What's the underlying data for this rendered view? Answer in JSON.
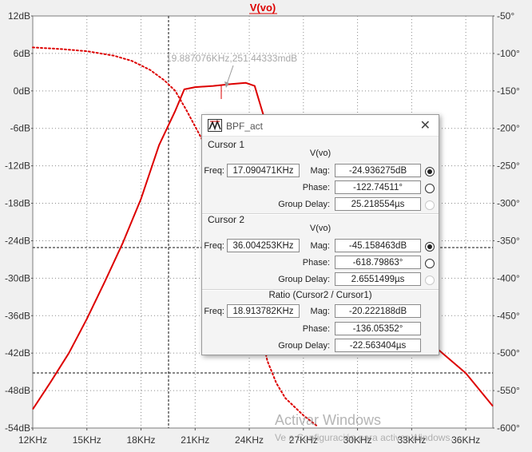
{
  "chart_data": {
    "type": "line",
    "title": "V(vo)",
    "x_ticks": [
      "12KHz",
      "15KHz",
      "18KHz",
      "21KHz",
      "24KHz",
      "27KHz",
      "30KHz",
      "33KHz",
      "36KHz"
    ],
    "y_left_ticks": [
      "12dB",
      "6dB",
      "0dB",
      "-6dB",
      "-12dB",
      "-18dB",
      "-24dB",
      "-30dB",
      "-36dB",
      "-42dB",
      "-48dB",
      "-54dB"
    ],
    "y_right_ticks": [
      "-50°",
      "-100°",
      "-150°",
      "-200°",
      "-250°",
      "-300°",
      "-350°",
      "-400°",
      "-450°",
      "-500°",
      "-550°",
      "-600°"
    ],
    "xlim": [
      12,
      37.5
    ],
    "ylim_left": [
      -54,
      12
    ],
    "ylim_right": [
      -600,
      -50
    ],
    "grid": true,
    "series": [
      {
        "name": "V(vo)",
        "style": "solid",
        "color": "#dd0000",
        "axis": "left",
        "x": [
          12,
          13,
          14,
          15,
          16,
          17,
          18,
          19,
          19.9,
          20.4,
          21,
          22,
          23,
          23.8,
          24.3,
          24.9,
          25.5,
          27,
          28.5,
          30,
          31.5,
          33,
          34.5,
          36,
          37.5
        ],
        "y": [
          -51,
          -46.6,
          -42,
          -36.5,
          -30.5,
          -24.3,
          -17.3,
          -8.7,
          -3.2,
          0.25,
          0.6,
          0.8,
          1.1,
          1.3,
          0.8,
          -5,
          -14,
          -21,
          -26,
          -30,
          -33.5,
          -37.5,
          -41.5,
          -45.2,
          -50.5
        ]
      },
      {
        "name": "Phase",
        "style": "dotted",
        "color": "#dd0000",
        "axis": "right",
        "x": [
          12,
          13.5,
          15,
          16.5,
          17.5,
          18.5,
          19.3,
          19.9,
          20.5,
          21.5,
          22.5,
          23.5,
          24.1,
          24.5,
          25,
          25.5,
          26,
          27,
          27.8
        ],
        "y": [
          -92,
          -94,
          -97,
          -103,
          -110,
          -122,
          -136,
          -150,
          -175,
          -220,
          -265,
          -320,
          -390,
          -455,
          -510,
          -540,
          -560,
          -583,
          -598
        ]
      }
    ]
  },
  "cursor_annotation": "19.887076KHz,251.44333mdB",
  "dialog": {
    "title": "BPF_act",
    "cursor1": {
      "heading": "Cursor 1",
      "signal": "V(vo)",
      "freq_label": "Freq:",
      "freq": "17.090471KHz",
      "mag_label": "Mag:",
      "mag": "-24.936275dB",
      "phase_label": "Phase:",
      "phase": "-122.74511°",
      "gd_label": "Group Delay:",
      "gd": "25.218554µs"
    },
    "cursor2": {
      "heading": "Cursor 2",
      "signal": "V(vo)",
      "freq_label": "Freq:",
      "freq": "36.004253KHz",
      "mag_label": "Mag:",
      "mag": "-45.158463dB",
      "phase_label": "Phase:",
      "phase": "-618.79863°",
      "gd_label": "Group Delay:",
      "gd": "2.6551499µs"
    },
    "ratio": {
      "heading": "Ratio (Cursor2 / Cursor1)",
      "freq_label": "Freq:",
      "freq": "18.913782KHz",
      "mag_label": "Mag:",
      "mag": "-20.222188dB",
      "phase_label": "Phase:",
      "phase": "-136.05352°",
      "gd_label": "Group Delay:",
      "gd": "-22.563404µs"
    }
  },
  "watermark": {
    "line1": "Activar Windows",
    "line2": "Ve a Configuración para activar Windows."
  }
}
